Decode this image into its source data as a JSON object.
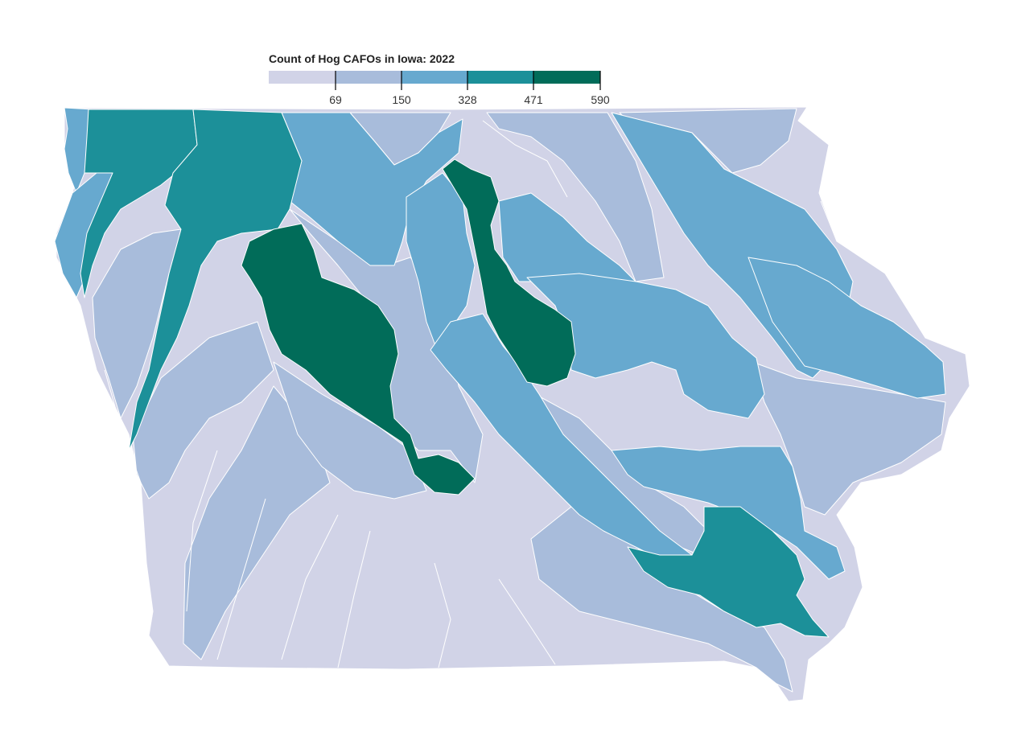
{
  "legend": {
    "title": "Count of Hog CAFOs in Iowa: 2022",
    "thresholds": [
      69,
      150,
      328,
      471,
      590
    ],
    "tick_labels": [
      "69",
      "150",
      "328",
      "471",
      "590"
    ],
    "colors": [
      "#d1d3e7",
      "#a8bcdb",
      "#67a9cf",
      "#1c9099",
      "#016c59"
    ]
  },
  "map": {
    "state": "Iowa",
    "region_type": "watershed",
    "fill_classes": [
      "0-69",
      "69-150",
      "150-328",
      "328-471",
      "471-590"
    ]
  }
}
